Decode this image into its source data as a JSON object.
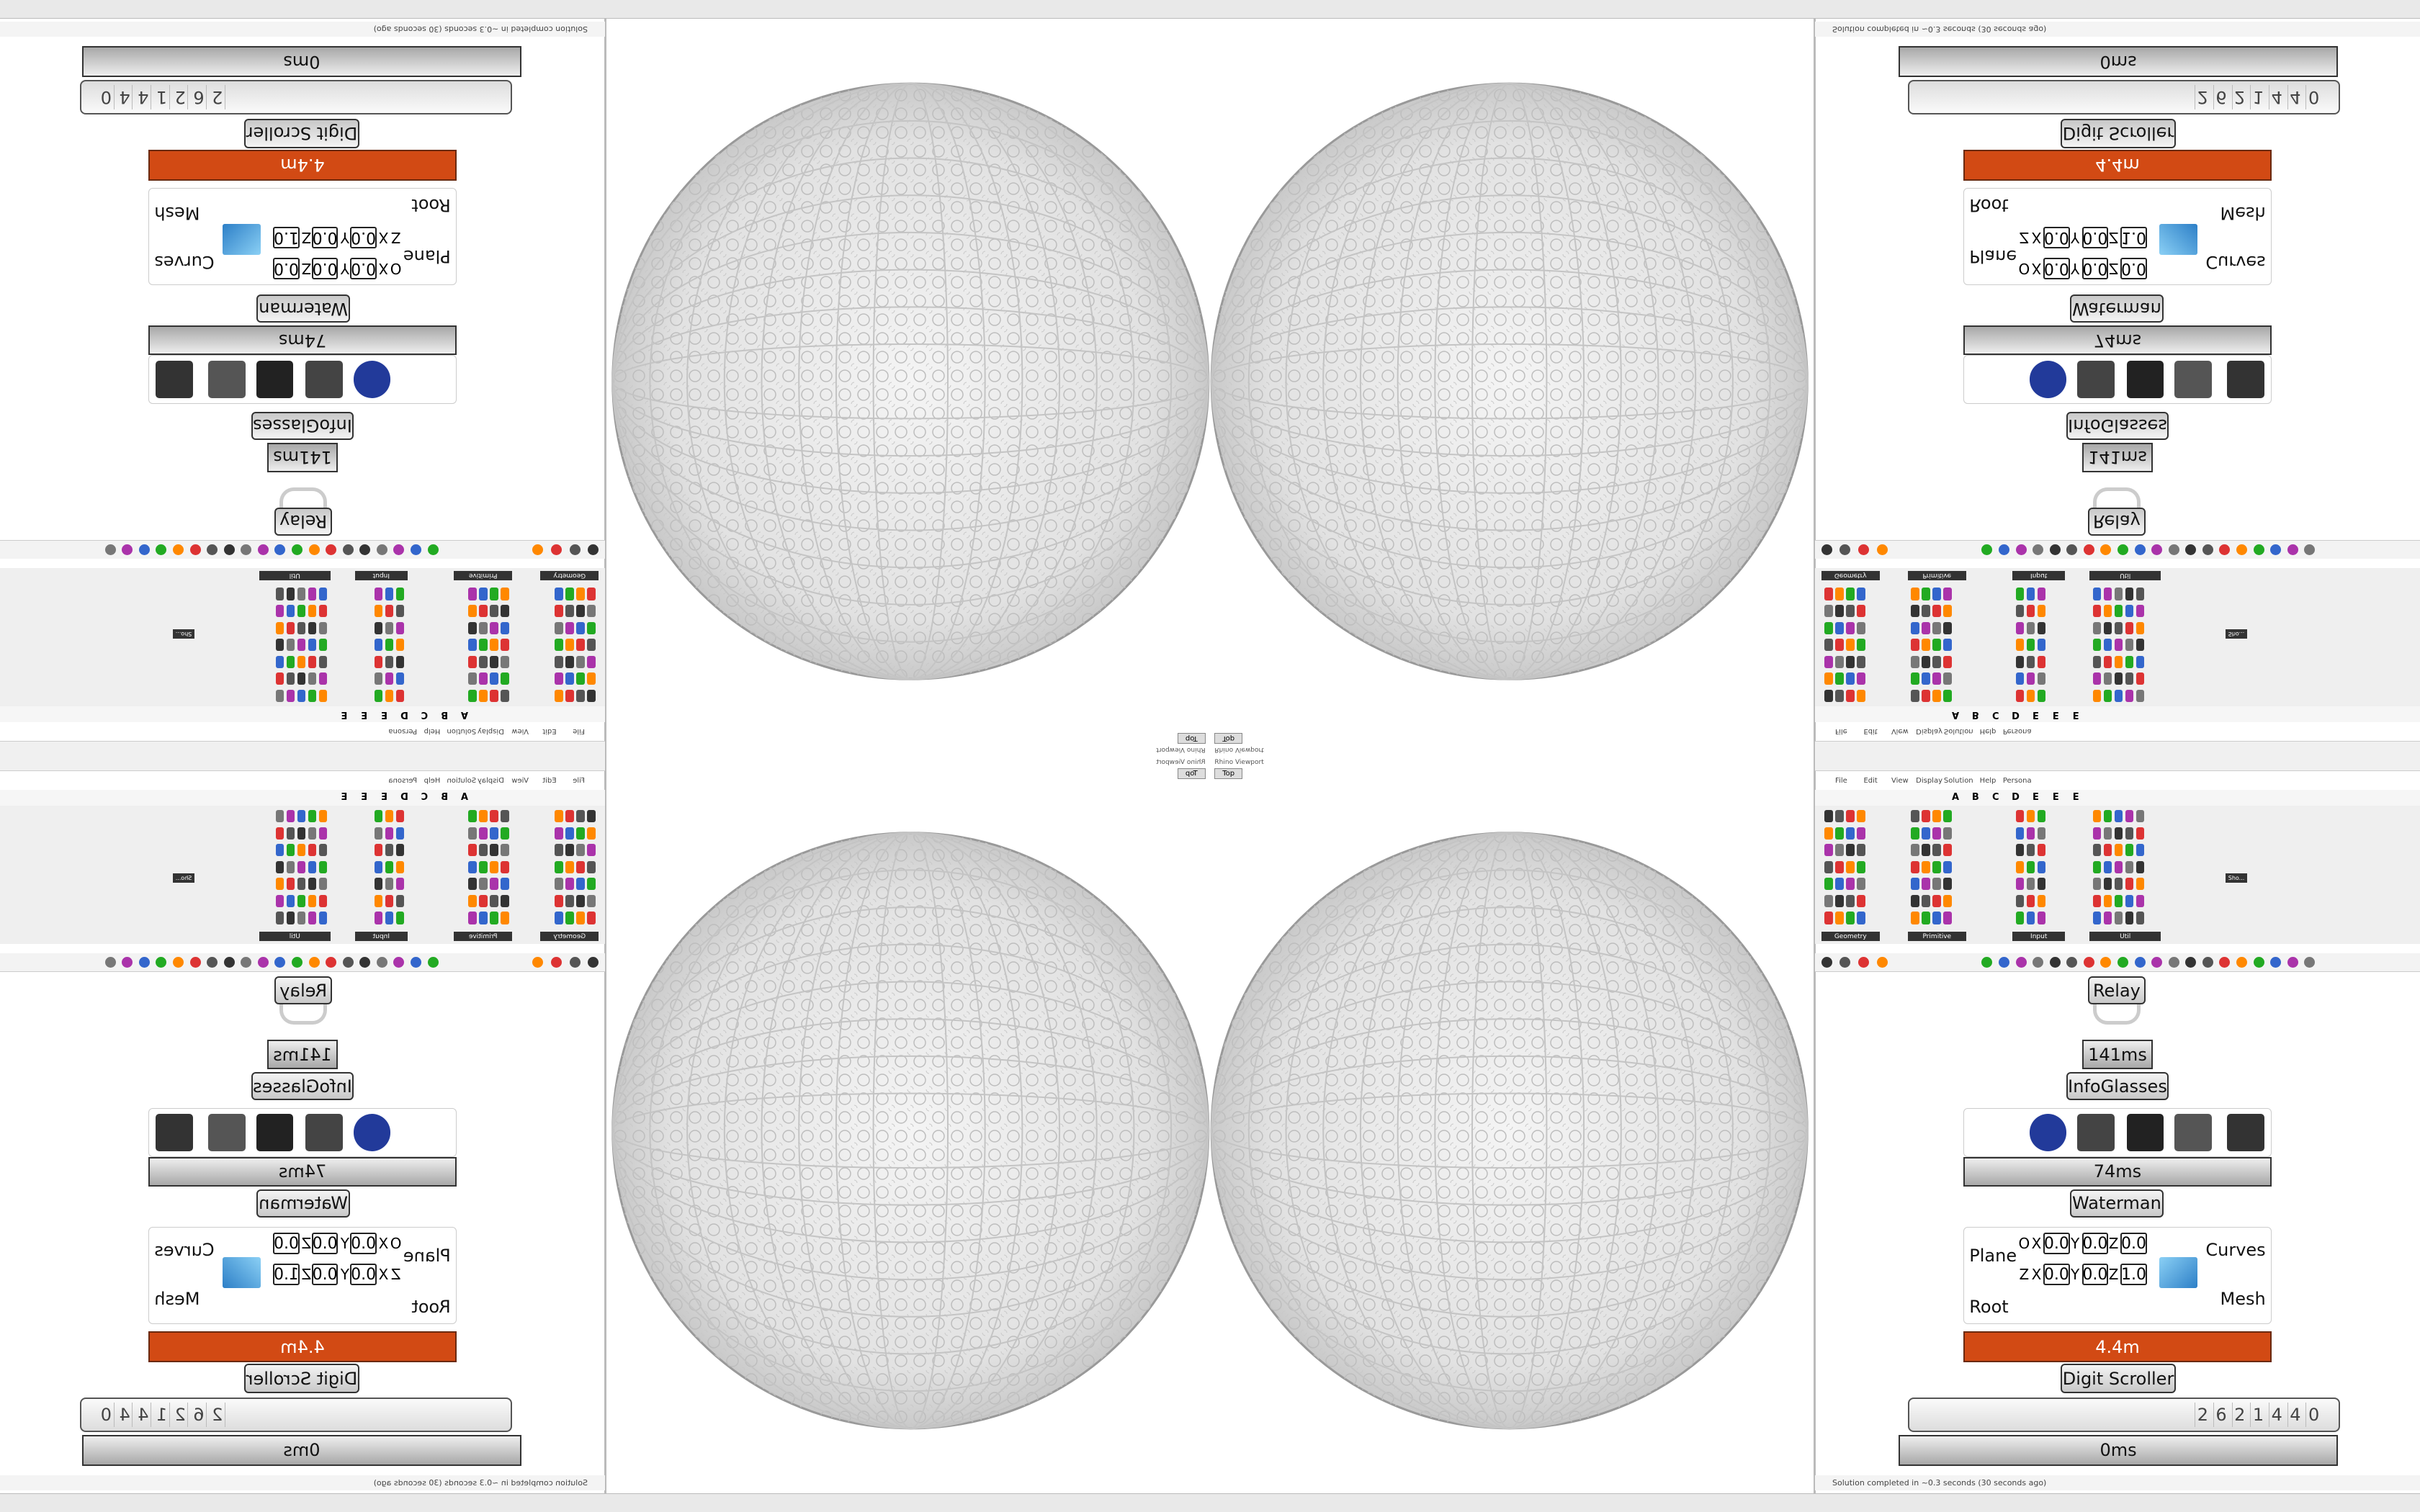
{
  "viewport": {
    "title": "Rhino Viewport",
    "view": "Top"
  },
  "menu": [
    "File",
    "Edit",
    "View",
    "Display",
    "Solution",
    "Help",
    "Persona"
  ],
  "palette_tabs": [
    "Geometry",
    "Primitive",
    "Input",
    "Util",
    "Sho..."
  ],
  "palette_letters": [
    "A",
    "B",
    "C",
    "D",
    "E",
    "E",
    "E"
  ],
  "canvas": {
    "relay": "Relay",
    "timing_infoglasses": "141ms",
    "infoglasses": "InfoGlasses",
    "timing_waterman": "74ms",
    "waterman": "Waterman",
    "inputs": [
      "Plane",
      "Root"
    ],
    "outputs": [
      "Curves",
      "Mesh"
    ],
    "plane_rows": [
      {
        "name": "O",
        "cells": [
          {
            "axis": "X",
            "value": "0.0"
          },
          {
            "axis": "Y",
            "value": "0.0"
          },
          {
            "axis": "Z",
            "value": "0.0"
          }
        ]
      },
      {
        "name": "Z",
        "cells": [
          {
            "axis": "X",
            "value": "0.0"
          },
          {
            "axis": "Y",
            "value": "0.0"
          },
          {
            "axis": "Z",
            "value": "1.0"
          }
        ]
      }
    ],
    "scroller_value": "4.4m",
    "digit_scroller": "Digit Scroller",
    "digits": [
      "2",
      "6",
      "2",
      "1",
      "4",
      "4",
      "0"
    ],
    "timing_scroller": "0ms"
  },
  "status": "Solution completed in ~0.3 seconds (30 seconds ago)"
}
